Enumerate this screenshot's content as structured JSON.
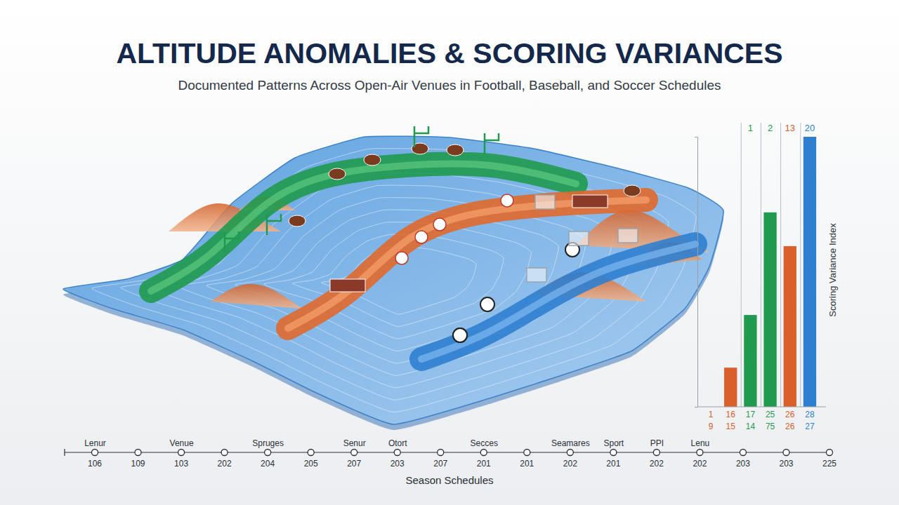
{
  "chart_data": [
    {
      "type": "bar",
      "title": "ALTITUDE ANOMALIES & SCORING VARIANCES",
      "subtitle": "Documented Patterns Across Open-Air Venues in Football, Baseball, and Soccer Schedules",
      "y_label": "Scoring Variance Index",
      "categories": [
        "1",
        "16",
        "17",
        "25",
        "26",
        "28"
      ],
      "sub_categories": [
        "9",
        "15",
        "14",
        "75",
        "26",
        "27"
      ],
      "values": [
        0,
        2.9,
        6.8,
        14.4,
        11.9,
        20
      ],
      "top_labels": [
        null,
        null,
        1,
        2,
        13,
        20
      ],
      "colors": [
        "#d9602a",
        "#d9602a",
        "#1f9a4e",
        "#1f9a4e",
        "#d9602a",
        "#2f7fd0"
      ],
      "ylim": [
        0,
        20
      ],
      "yticks": [
        0,
        20
      ],
      "tick_labels": false,
      "grid": false
    },
    {
      "type": "timeline",
      "x_label": "Season Schedules",
      "categories": [
        "Lenur",
        null,
        "Venue",
        null,
        "Spruges",
        null,
        "Senur",
        "Otort",
        null,
        "Secces",
        null,
        "Seamares",
        "Sport",
        "PPI",
        "Lenu",
        null,
        null,
        null
      ],
      "values": [
        106,
        109,
        103,
        202,
        204,
        205,
        207,
        203,
        207,
        201,
        201,
        202,
        201,
        202,
        202,
        203,
        203,
        225
      ],
      "data_labels": true
    }
  ]
}
